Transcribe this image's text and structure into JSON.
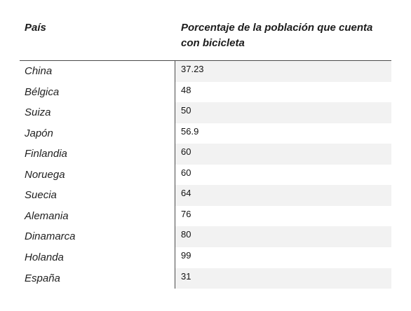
{
  "table": {
    "headers": {
      "country": "País",
      "percent": "Porcentaje de la población que cuenta con bicicleta"
    },
    "rows": [
      {
        "country": "China",
        "value": "37.23"
      },
      {
        "country": "Bélgica",
        "value": "48"
      },
      {
        "country": "Suiza",
        "value": "50"
      },
      {
        "country": "Japón",
        "value": "56.9"
      },
      {
        "country": "Finlandia",
        "value": "60"
      },
      {
        "country": "Noruega",
        "value": "60"
      },
      {
        "country": "Suecia",
        "value": "64"
      },
      {
        "country": "Alemania",
        "value": "76"
      },
      {
        "country": "Dinamarca",
        "value": "80"
      },
      {
        "country": "Holanda",
        "value": "99"
      },
      {
        "country": "España",
        "value": "31"
      }
    ]
  }
}
